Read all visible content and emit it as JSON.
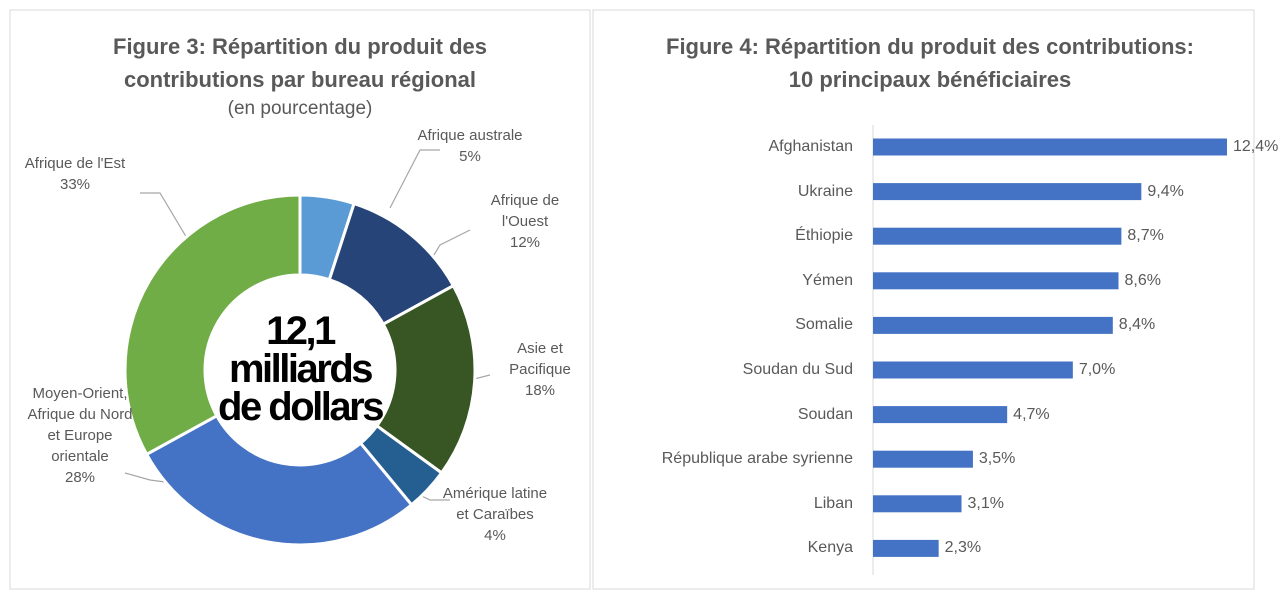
{
  "chart_data": [
    {
      "type": "pie",
      "title": "Figure 3: Répartition du produit des contributions par bureau régional",
      "subtitle": "(en pourcentage)",
      "center_label": "12,1 milliards de dollars",
      "categories": [
        "Afrique australe",
        "Afrique de l'Ouest",
        "Asie et Pacifique",
        "Amérique latine et Caraïbes",
        "Moyen-Orient, Afrique du Nord et Europe orientale",
        "Afrique de l'Est"
      ],
      "values": [
        5,
        12,
        18,
        4,
        28,
        33
      ],
      "value_labels": [
        "5%",
        "12%",
        "18%",
        "4%",
        "28%",
        "33%"
      ],
      "colors": [
        "#5b9bd5",
        "#264478",
        "#375623",
        "#255e91",
        "#4472c4",
        "#70ad47"
      ]
    },
    {
      "type": "bar",
      "title": "Figure 4: Répartition du produit des contributions: 10 principaux bénéficiaires",
      "categories": [
        "Afghanistan",
        "Ukraine",
        "Éthiopie",
        "Yémen",
        "Somalie",
        "Soudan du Sud",
        "Soudan",
        "République arabe syrienne",
        "Liban",
        "Kenya"
      ],
      "values": [
        12.4,
        9.4,
        8.7,
        8.6,
        8.4,
        7.0,
        4.7,
        3.5,
        3.1,
        2.3
      ],
      "value_labels": [
        "12,4%",
        "9,4%",
        "8,7%",
        "8,6%",
        "8,4%",
        "7,0%",
        "4,7%",
        "3,5%",
        "3,1%",
        "2,3%"
      ],
      "color": "#4472c4"
    }
  ]
}
